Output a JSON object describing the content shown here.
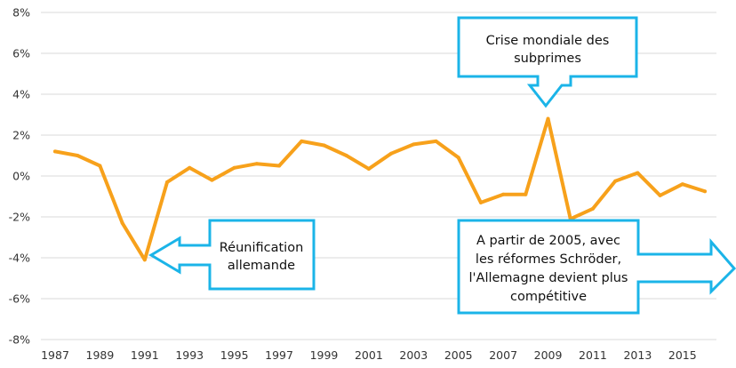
{
  "chart_data": {
    "type": "line",
    "title": "",
    "xlabel": "",
    "ylabel": "",
    "x": [
      1987,
      1988,
      1989,
      1990,
      1991,
      1992,
      1993,
      1994,
      1995,
      1996,
      1997,
      1998,
      1999,
      2000,
      2001,
      2002,
      2003,
      2004,
      2005,
      2006,
      2007,
      2008,
      2009,
      2010,
      2011,
      2012,
      2013,
      2014,
      2015,
      2016
    ],
    "series": [
      {
        "values": [
          1.2,
          1.0,
          0.5,
          -2.3,
          -4.1,
          -0.3,
          0.4,
          -0.2,
          0.4,
          0.6,
          0.5,
          1.7,
          1.5,
          1.0,
          0.35,
          1.1,
          1.55,
          1.7,
          0.9,
          -1.3,
          -0.9,
          -0.9,
          2.8,
          -2.1,
          -1.6,
          -0.25,
          0.15,
          -0.95,
          -0.4,
          -0.75
        ]
      }
    ],
    "ylim": [
      -8,
      8
    ],
    "yticks": [
      "8%",
      "6%",
      "4%",
      "2%",
      "0%",
      "-2%",
      "-4%",
      "-6%",
      "-8%"
    ],
    "xticks": [
      "1987",
      "1989",
      "1991",
      "1993",
      "1995",
      "1997",
      "1999",
      "2001",
      "2003",
      "2005",
      "2007",
      "2009",
      "2011",
      "2013",
      "2015"
    ],
    "grid": true,
    "colors": {
      "line": "#F7A11B",
      "grid": "#D9D9D9",
      "callout": "#1BB4E8"
    },
    "annotations": [
      {
        "id": "reunification",
        "lines": [
          "Réunification",
          "allemande"
        ]
      },
      {
        "id": "subprimes",
        "lines": [
          "Crise mondiale des",
          "subprimes"
        ]
      },
      {
        "id": "reforms",
        "lines": [
          "A partir de 2005, avec",
          "les réformes Schröder,",
          "l'Allemagne devient plus",
          "compétitive"
        ]
      }
    ]
  }
}
